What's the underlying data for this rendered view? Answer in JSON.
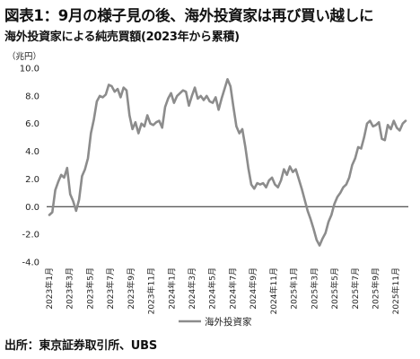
{
  "title": "図表1：9月の様子見の後、海外投資家は再び買い越しに",
  "subtitle": "海外投資家による純売買額(2023年から累積)",
  "source": "出所：東京証券取引所、UBS",
  "chart_data": {
    "type": "line",
    "unit_label": "（兆円）",
    "ylim": [
      -4.0,
      10.0
    ],
    "y_ticks": [
      "10.0",
      "8.0",
      "6.0",
      "4.0",
      "2.0",
      "0.0",
      "-2.0",
      "-4.0"
    ],
    "x_tick_labels": [
      "2023年1月",
      "2023年3月",
      "2023年5月",
      "2023年7月",
      "2023年9月",
      "2023年11月",
      "2024年1月",
      "2024年3月",
      "2024年5月",
      "2024年7月",
      "2024年9月",
      "2024年11月",
      "2025年1月",
      "2025年3月",
      "2025年5月",
      "2025年7月",
      "2025年9月",
      "2025年11月"
    ],
    "grid": false,
    "legend_position": "bottom",
    "series": [
      {
        "name": "海外投資家",
        "color": "#8c8c8c",
        "values": [
          -0.6,
          -0.4,
          1.2,
          1.8,
          2.3,
          2.1,
          2.8,
          0.9,
          0.4,
          -0.3,
          0.5,
          2.2,
          2.7,
          3.5,
          5.3,
          6.3,
          7.6,
          8.0,
          7.9,
          8.1,
          8.8,
          8.7,
          8.3,
          8.5,
          7.9,
          8.6,
          8.4,
          6.6,
          5.6,
          6.1,
          5.3,
          6.0,
          5.8,
          6.6,
          6.0,
          5.9,
          6.1,
          6.2,
          5.7,
          7.2,
          7.8,
          8.2,
          7.5,
          8.0,
          8.2,
          8.4,
          8.3,
          7.3,
          8.0,
          8.6,
          7.8,
          8.0,
          7.7,
          8.0,
          7.6,
          7.5,
          7.9,
          7.0,
          7.8,
          8.5,
          9.2,
          8.7,
          7.2,
          5.8,
          5.3,
          5.6,
          4.3,
          2.8,
          1.6,
          1.3,
          1.7,
          1.6,
          1.7,
          1.4,
          1.9,
          2.1,
          1.6,
          1.4,
          1.9,
          2.7,
          2.3,
          2.9,
          2.5,
          2.7,
          2.0,
          1.3,
          0.5,
          -0.3,
          -0.9,
          -1.6,
          -2.4,
          -2.8,
          -2.3,
          -1.9,
          -1.1,
          -0.6,
          0.2,
          0.7,
          1.0,
          1.4,
          1.6,
          2.1,
          3.0,
          3.5,
          4.3,
          4.2,
          5.0,
          6.0,
          6.2,
          5.8,
          5.9,
          6.1,
          4.9,
          4.8,
          5.9,
          5.6,
          6.2,
          5.7,
          5.5,
          6.0,
          6.2
        ]
      }
    ]
  }
}
